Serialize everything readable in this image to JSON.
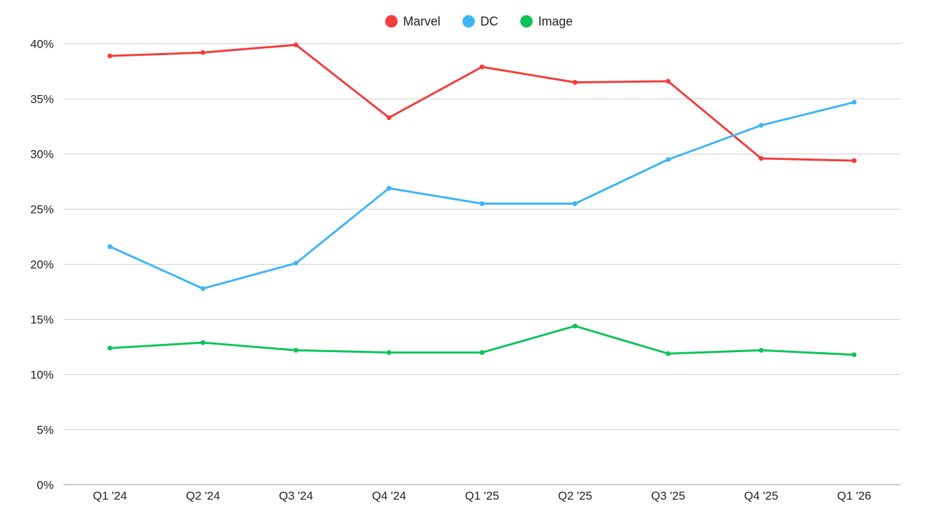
{
  "chart_data": {
    "type": "line",
    "title": "",
    "xlabel": "",
    "ylabel": "",
    "categories": [
      "Q1 '24",
      "Q2 '24",
      "Q3 '24",
      "Q4 '24",
      "Q1 '25",
      "Q2 '25",
      "Q3 '25",
      "Q4 '25",
      "Q1 '26"
    ],
    "y_ticks": [
      "0%",
      "5%",
      "10%",
      "15%",
      "20%",
      "25%",
      "30%",
      "35%",
      "40%"
    ],
    "y_tick_values": [
      0,
      5,
      10,
      15,
      20,
      25,
      30,
      35,
      40
    ],
    "ylim": [
      0,
      40
    ],
    "grid": true,
    "legend_position": "top-center",
    "series": [
      {
        "name": "Marvel",
        "color": "#f53b3b",
        "values": [
          38.9,
          39.2,
          39.9,
          33.3,
          37.9,
          36.5,
          36.6,
          29.6,
          29.4
        ]
      },
      {
        "name": "DC",
        "color": "#3db5f7",
        "values": [
          21.6,
          17.8,
          20.1,
          26.9,
          25.5,
          25.5,
          29.5,
          32.6,
          34.7
        ]
      },
      {
        "name": "Image",
        "color": "#0ec45a",
        "values": [
          12.4,
          12.9,
          12.2,
          12.0,
          12.0,
          14.4,
          11.9,
          12.2,
          11.8
        ]
      }
    ]
  }
}
